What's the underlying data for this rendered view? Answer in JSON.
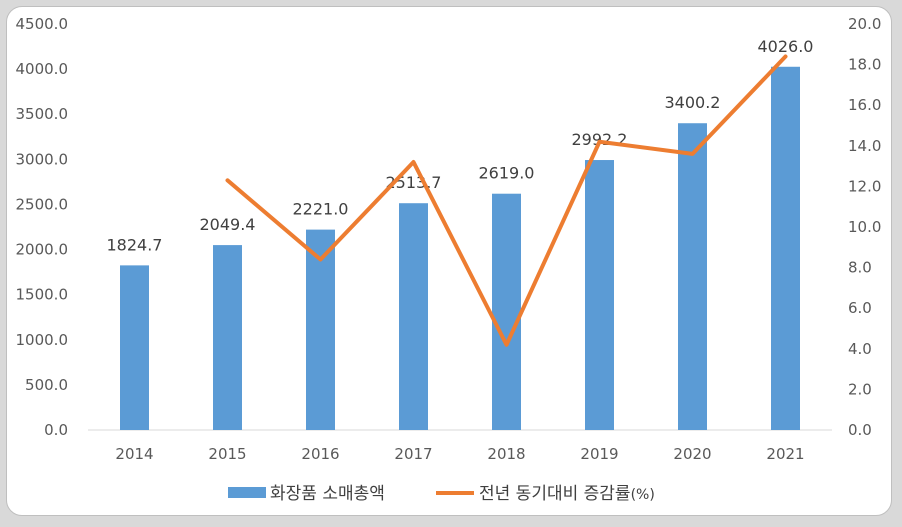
{
  "chart_data": {
    "type": "bar",
    "categories": [
      "2014",
      "2015",
      "2016",
      "2017",
      "2018",
      "2019",
      "2020",
      "2021"
    ],
    "series": [
      {
        "name": "화장품 소매총액",
        "type": "bar",
        "axis": "left",
        "color": "#5b9bd5",
        "values": [
          1824.7,
          2049.4,
          2221.0,
          2513.7,
          2619.0,
          2992.2,
          3400.2,
          4026.0
        ],
        "labels": [
          "1824.7",
          "2049.4",
          "2221.0",
          "2513.7",
          "2619.0",
          "2992.2",
          "3400.2",
          "4026.0"
        ]
      },
      {
        "name": "전년 동기대비 증감률",
        "name_suffix": "(%)",
        "type": "line",
        "axis": "right",
        "color": "#ed7d31",
        "values": [
          null,
          12.3,
          8.4,
          13.2,
          4.2,
          14.2,
          13.6,
          18.4
        ]
      }
    ],
    "left_axis": {
      "ylim": [
        0,
        4500
      ],
      "ticks": [
        "0.0",
        "500.0",
        "1000.0",
        "1500.0",
        "2000.0",
        "2500.0",
        "3000.0",
        "3500.0",
        "4000.0",
        "4500.0"
      ]
    },
    "right_axis": {
      "ylim": [
        0,
        20
      ],
      "ticks": [
        "0.0",
        "2.0",
        "4.0",
        "6.0",
        "8.0",
        "10.0",
        "12.0",
        "14.0",
        "16.0",
        "18.0",
        "20.0"
      ]
    },
    "grid": false,
    "legend_position": "bottom"
  }
}
